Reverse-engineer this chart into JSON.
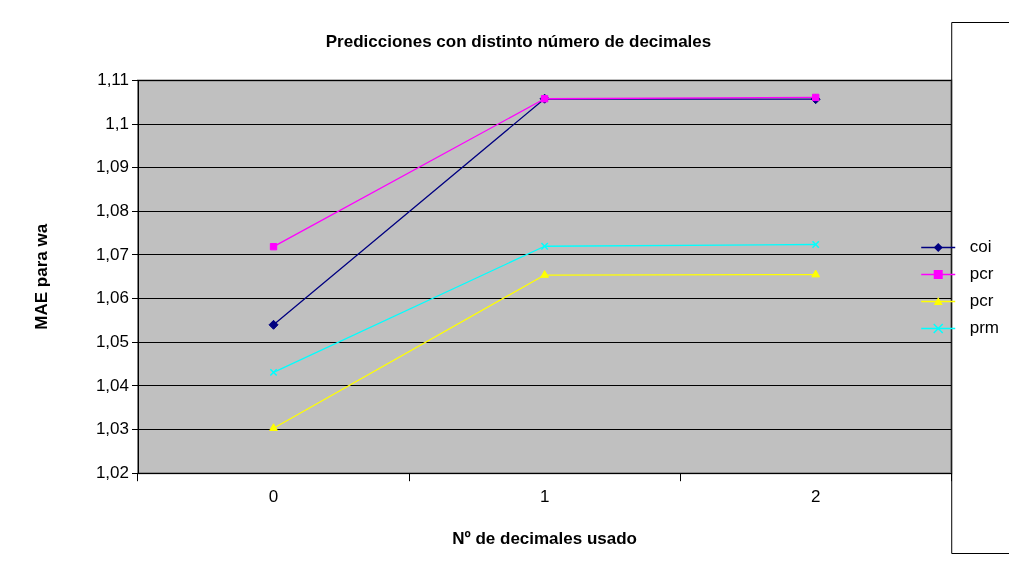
{
  "chart_data": {
    "type": "line",
    "title": "Predicciones con distinto número de decimales",
    "xlabel": "Nº de decimales usado",
    "ylabel": "MAE para wa",
    "categories": [
      "0",
      "1",
      "2"
    ],
    "series": [
      {
        "name": "coi",
        "color": "#000080",
        "marker": "diamond",
        "values": [
          1.054,
          1.1058,
          1.1057
        ]
      },
      {
        "name": "pcr",
        "color": "#ff00ff",
        "marker": "square",
        "values": [
          1.0719,
          1.1058,
          1.1061
        ]
      },
      {
        "name": "pcr",
        "color": "#ffff00",
        "marker": "triangle",
        "values": [
          1.0303,
          1.0654,
          1.0655
        ]
      },
      {
        "name": "prm",
        "color": "#00ffff",
        "marker": "cross",
        "values": [
          1.0431,
          1.072,
          1.0724
        ]
      }
    ],
    "ylim": [
      1.02,
      1.11
    ],
    "yticks": [
      {
        "value": 1.02,
        "label": "1,02"
      },
      {
        "value": 1.03,
        "label": "1,03"
      },
      {
        "value": 1.04,
        "label": "1,04"
      },
      {
        "value": 1.05,
        "label": "1,05"
      },
      {
        "value": 1.06,
        "label": "1,06"
      },
      {
        "value": 1.07,
        "label": "1,07"
      },
      {
        "value": 1.08,
        "label": "1,08"
      },
      {
        "value": 1.09,
        "label": "1,09"
      },
      {
        "value": 1.1,
        "label": "1,1"
      },
      {
        "value": 1.11,
        "label": "1,11"
      }
    ],
    "grid": "y",
    "legend": "right",
    "line_style": "solid"
  }
}
